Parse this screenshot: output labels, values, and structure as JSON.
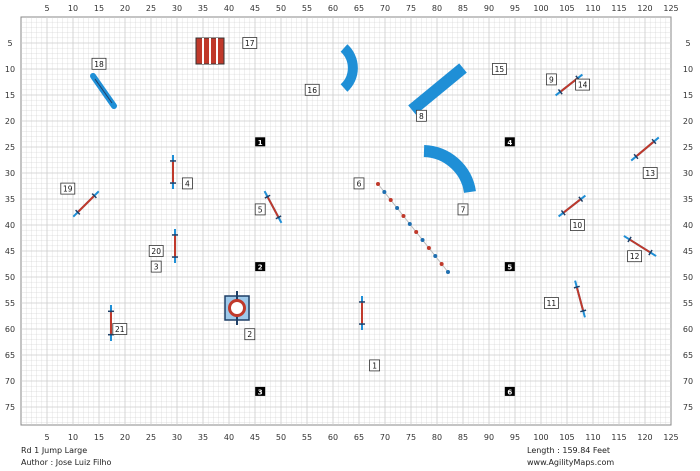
{
  "axes": {
    "x_ticks": [
      5,
      10,
      15,
      20,
      25,
      30,
      35,
      40,
      45,
      50,
      55,
      60,
      65,
      70,
      75,
      80,
      85,
      90,
      95,
      100,
      105,
      110,
      115,
      120,
      125
    ],
    "y_ticks": [
      5,
      10,
      15,
      20,
      25,
      30,
      35,
      40,
      45,
      50,
      55,
      60,
      65,
      70,
      75
    ]
  },
  "numbered_labels": [
    {
      "text": "1",
      "x": 68,
      "y": 67
    },
    {
      "text": "2",
      "x": 44,
      "y": 61
    },
    {
      "text": "3",
      "x": 26,
      "y": 48
    },
    {
      "text": "4",
      "x": 32,
      "y": 32
    },
    {
      "text": "5",
      "x": 46,
      "y": 37
    },
    {
      "text": "6",
      "x": 65,
      "y": 32
    },
    {
      "text": "7",
      "x": 85,
      "y": 37
    },
    {
      "text": "8",
      "x": 77,
      "y": 19
    },
    {
      "text": "9",
      "x": 102,
      "y": 12
    },
    {
      "text": "10",
      "x": 107,
      "y": 40
    },
    {
      "text": "11",
      "x": 102,
      "y": 55
    },
    {
      "text": "12",
      "x": 118,
      "y": 46
    },
    {
      "text": "13",
      "x": 121,
      "y": 30
    },
    {
      "text": "14",
      "x": 108,
      "y": 13
    },
    {
      "text": "15",
      "x": 92,
      "y": 10
    },
    {
      "text": "16",
      "x": 56,
      "y": 14
    },
    {
      "text": "17",
      "x": 44,
      "y": 5
    },
    {
      "text": "18",
      "x": 15,
      "y": 9
    },
    {
      "text": "19",
      "x": 9,
      "y": 33
    },
    {
      "text": "20",
      "x": 26,
      "y": 45
    },
    {
      "text": "21",
      "x": 19,
      "y": 60
    }
  ],
  "start_markers": [
    {
      "text": "1",
      "x": 46,
      "y": 24
    },
    {
      "text": "2",
      "x": 46,
      "y": 48
    },
    {
      "text": "3",
      "x": 46,
      "y": 72
    },
    {
      "text": "4",
      "x": 94,
      "y": 24
    },
    {
      "text": "5",
      "x": 94,
      "y": 48
    },
    {
      "text": "6",
      "x": 94,
      "y": 72
    }
  ],
  "footer": {
    "left_line1": "Rd 1 Jump Large",
    "left_line2": "Author : Jose Luiz Filho",
    "right_line1": "Length : 159.84 Feet",
    "right_line2": "www.AgilityMaps.com"
  },
  "colors": {
    "grid": "#cccccc",
    "tunnel": "#1f8fd6",
    "bar": "#c0392b",
    "wing": "#1f8fd6",
    "marker": "#000000"
  }
}
